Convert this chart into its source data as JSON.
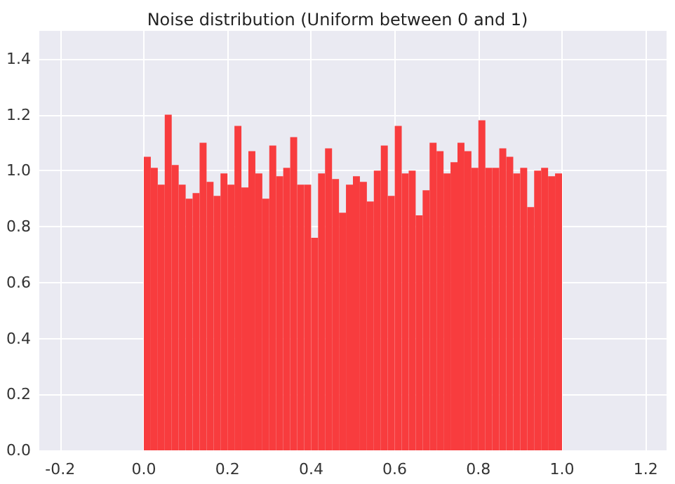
{
  "chart_data": {
    "type": "histogram",
    "title": "Noise distribution (Uniform between 0 and 1)",
    "bins": [
      0,
      0.01667,
      0.03333,
      0.05,
      0.06667,
      0.08333,
      0.1,
      0.11667,
      0.13333,
      0.15,
      0.16667,
      0.18333,
      0.2,
      0.21667,
      0.23333,
      0.25,
      0.26667,
      0.28333,
      0.3,
      0.31667,
      0.33333,
      0.35,
      0.36667,
      0.38333,
      0.4,
      0.41667,
      0.43333,
      0.45,
      0.46667,
      0.48333,
      0.5,
      0.51667,
      0.53333,
      0.55,
      0.56667,
      0.58333,
      0.6,
      0.61667,
      0.63333,
      0.65,
      0.66667,
      0.68333,
      0.7,
      0.71667,
      0.73333,
      0.75,
      0.76667,
      0.78333,
      0.8,
      0.81667,
      0.83333,
      0.85,
      0.86667,
      0.88333,
      0.9,
      0.91667,
      0.93333,
      0.95,
      0.96667,
      0.98333,
      1
    ],
    "values": [
      1.05,
      1.01,
      0.95,
      1.2,
      1.02,
      0.95,
      0.9,
      0.92,
      1.1,
      0.96,
      0.91,
      0.99,
      0.95,
      1.16,
      0.94,
      1.07,
      0.99,
      0.9,
      1.09,
      0.98,
      1.01,
      1.12,
      0.95,
      0.95,
      0.76,
      0.99,
      1.08,
      0.97,
      0.85,
      0.95,
      0.98,
      0.96,
      0.89,
      1.0,
      1.09,
      0.91,
      1.16,
      0.99,
      1.0,
      0.84,
      0.93,
      1.1,
      1.07,
      0.99,
      1.03,
      1.1,
      1.07,
      1.01,
      1.18,
      1.01,
      1.01,
      1.08,
      1.05,
      0.99,
      1.01,
      0.87,
      1.0,
      1.01,
      0.98,
      0.99
    ],
    "color": "#f83c3e",
    "xlim": [
      -0.25,
      1.25
    ],
    "xticks": [
      {
        "value": -0.2,
        "label": "-0.2"
      },
      {
        "value": 0,
        "label": "0.0"
      },
      {
        "value": 0.2,
        "label": "0.2"
      },
      {
        "value": 0.4,
        "label": "0.4"
      },
      {
        "value": 0.6,
        "label": "0.6"
      },
      {
        "value": 0.8,
        "label": "0.8"
      },
      {
        "value": 1,
        "label": "1.0"
      },
      {
        "value": 1.2,
        "label": "1.2"
      }
    ],
    "ylim": [
      0,
      1.5
    ],
    "yticks": [
      {
        "value": 0,
        "label": "0.0"
      },
      {
        "value": 0.2,
        "label": "0.2"
      },
      {
        "value": 0.4,
        "label": "0.4"
      },
      {
        "value": 0.6,
        "label": "0.6"
      },
      {
        "value": 0.8,
        "label": "0.8"
      },
      {
        "value": 1,
        "label": "1.0"
      },
      {
        "value": 1.2,
        "label": "1.2"
      },
      {
        "value": 1.4,
        "label": "1.4"
      }
    ],
    "grid": true
  }
}
